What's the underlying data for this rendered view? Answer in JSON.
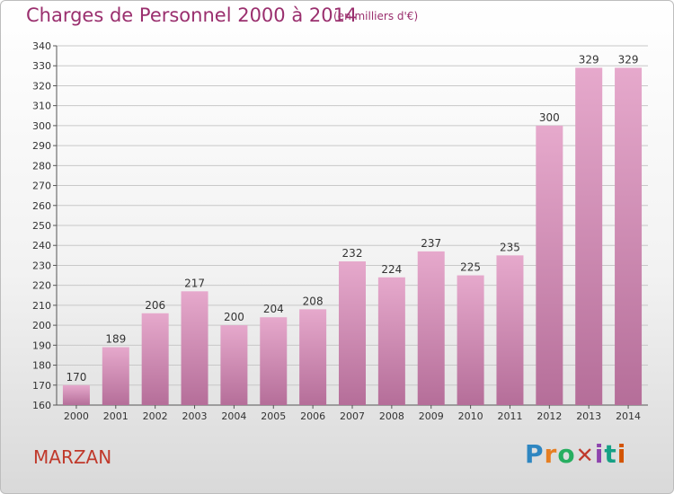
{
  "chart_data": {
    "type": "bar",
    "title": "Charges de Personnel 2000 à 2014",
    "subtitle": "(en milliers d'€)",
    "categories": [
      "2000",
      "2001",
      "2002",
      "2003",
      "2004",
      "2005",
      "2006",
      "2007",
      "2008",
      "2009",
      "2010",
      "2011",
      "2012",
      "2013",
      "2014"
    ],
    "values": [
      170,
      189,
      206,
      217,
      200,
      204,
      208,
      232,
      224,
      237,
      225,
      235,
      300,
      329,
      329
    ],
    "ylim": [
      160,
      340
    ],
    "yticks": [
      160,
      170,
      180,
      190,
      200,
      210,
      220,
      230,
      240,
      250,
      260,
      270,
      280,
      290,
      300,
      310,
      320,
      330,
      340
    ],
    "grid": true,
    "xlabel": "",
    "ylabel": ""
  },
  "commune": "MARZAN",
  "logo": {
    "text": "Proxiti"
  },
  "colors": {
    "title": "#9a2f6e",
    "bar_light": "#e6a9cc",
    "bar_dark": "#b56e99",
    "commune": "#c0392b"
  }
}
